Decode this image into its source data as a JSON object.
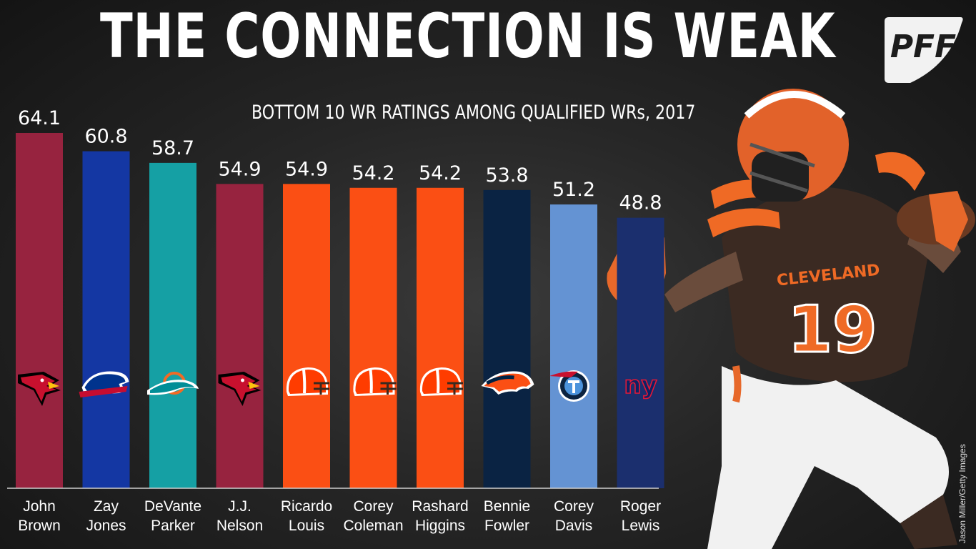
{
  "header": {
    "title": "THE CONNECTION IS WEAK",
    "subtitle": "BOTTOM 10 WR RATINGS AMONG QUALIFIED WRs, 2017",
    "brand": "PFF"
  },
  "photo_credit": "Jason Miller/Getty Images",
  "jersey": {
    "team_text": "CLEVELAND",
    "number": "19"
  },
  "chart_data": {
    "type": "bar",
    "title": "BOTTOM 10 WR RATINGS AMONG QUALIFIED WRs, 2017",
    "categories": [
      "John Brown",
      "Zay Jones",
      "DeVante Parker",
      "J.J. Nelson",
      "Ricardo Louis",
      "Corey Coleman",
      "Rashard Higgins",
      "Bennie Fowler",
      "Corey Davis",
      "Roger Lewis"
    ],
    "category_lines": [
      [
        "John",
        "Brown"
      ],
      [
        "Zay",
        "Jones"
      ],
      [
        "DeVante",
        "Parker"
      ],
      [
        "J.J.",
        "Nelson"
      ],
      [
        "Ricardo",
        "Louis"
      ],
      [
        "Corey",
        "Coleman"
      ],
      [
        "Rashard",
        "Higgins"
      ],
      [
        "Bennie",
        "Fowler"
      ],
      [
        "Corey",
        "Davis"
      ],
      [
        "Roger",
        "Lewis"
      ]
    ],
    "values": [
      64.1,
      60.8,
      58.7,
      54.9,
      54.9,
      54.2,
      54.2,
      53.8,
      51.2,
      48.8
    ],
    "value_labels": [
      "64.1",
      "60.8",
      "58.7",
      "54.9",
      "54.9",
      "54.2",
      "54.2",
      "53.8",
      "51.2",
      "48.8"
    ],
    "teams": [
      "cardinals",
      "bills",
      "dolphins",
      "cardinals",
      "browns",
      "browns",
      "browns",
      "broncos",
      "titans",
      "giants"
    ],
    "colors": [
      "#97233F",
      "#1437A3",
      "#15A0A4",
      "#97233F",
      "#FB4F14",
      "#FB4F14",
      "#FB4F14",
      "#0A2343",
      "#6493D3",
      "#1B2F6E"
    ],
    "ylim": [
      0,
      70
    ],
    "xlabel": "",
    "ylabel": "",
    "grid": false,
    "legend": "none"
  }
}
